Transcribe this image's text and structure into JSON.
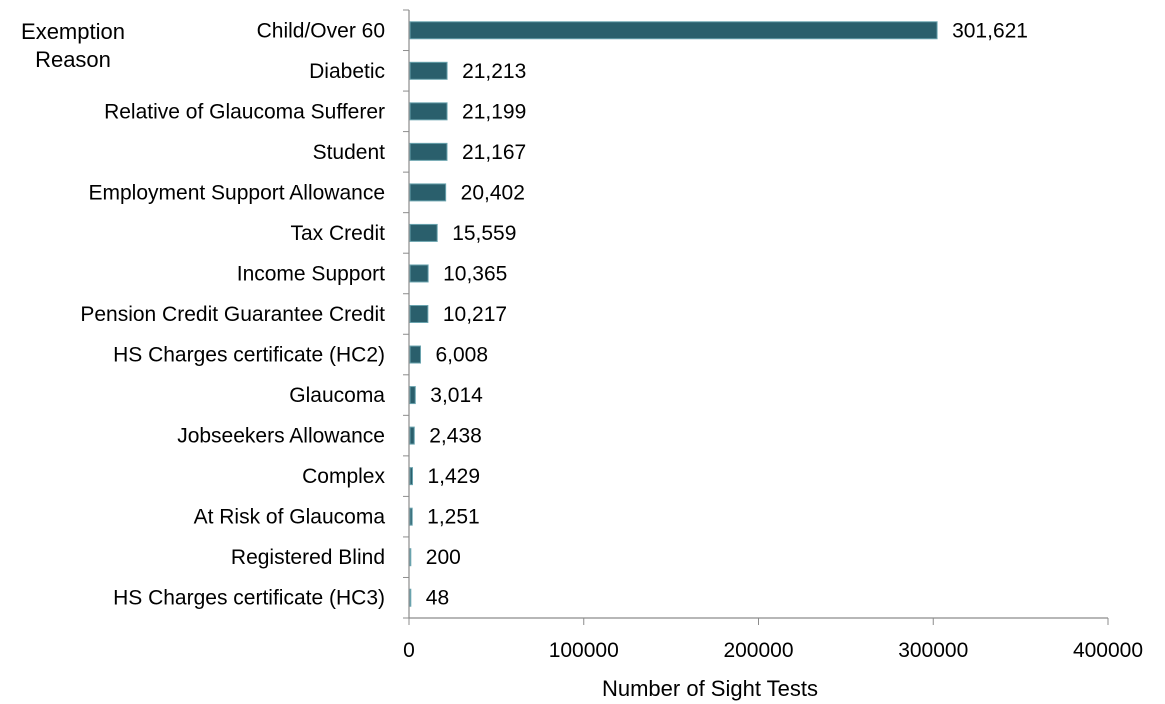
{
  "chart_data": {
    "type": "bar",
    "orientation": "horizontal",
    "ylabel": "Exemption\nReason",
    "xlabel": "Number of Sight Tests",
    "xlim": [
      0,
      400000
    ],
    "xticks": [
      "0",
      "100000",
      "200000",
      "300000",
      "400000"
    ],
    "grid": false,
    "bar_color": "#2a5f6c",
    "categories": [
      "Child/Over 60",
      "Diabetic",
      "Relative of Glaucoma Sufferer",
      "Student",
      "Employment Support Allowance",
      "Tax Credit",
      "Income Support",
      "Pension Credit Guarantee Credit",
      "HS Charges certificate (HC2)",
      "Glaucoma",
      "Jobseekers Allowance",
      "Complex",
      "At Risk of Glaucoma",
      "Registered Blind",
      "HS Charges certificate (HC3)"
    ],
    "values": [
      301621,
      21213,
      21199,
      21167,
      20402,
      15559,
      10365,
      10217,
      6008,
      3014,
      2438,
      1429,
      1251,
      200,
      48
    ],
    "value_labels": [
      "301,621",
      "21,213",
      "21,199",
      "21,167",
      "20,402",
      "15,559",
      "10,365",
      "10,217",
      "6,008",
      "3,014",
      "2,438",
      "1,429",
      "1,251",
      "200",
      "48"
    ]
  }
}
